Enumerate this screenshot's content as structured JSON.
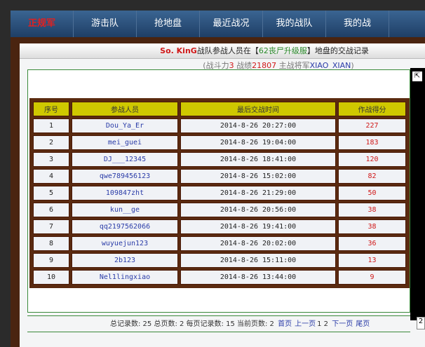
{
  "nav": [
    "正规军",
    "游击队",
    "抢地盘",
    "最近战况",
    "我的战队",
    "我的战"
  ],
  "title": {
    "team": "So. KinG",
    "mid1": "战队参战人员在【",
    "zone": "62丧尸升级服",
    "mid2": "】地盘的交战记录"
  },
  "sub": {
    "p1": "(战斗力",
    "power": "3",
    "p2": " 战绩",
    "record": "21807",
    "p3": " 主战将军",
    "general": "XIAO_XIAN",
    "p4": ")"
  },
  "table": {
    "headers": [
      "序号",
      "参战人员",
      "最后交战时间",
      "作战得分"
    ],
    "rows": [
      [
        "1",
        "Dou_Ya_Er",
        "2014-8-26 20:27:00",
        "227"
      ],
      [
        "2",
        "mei_guei",
        "2014-8-26 19:04:00",
        "183"
      ],
      [
        "3",
        "DJ___12345",
        "2014-8-26 18:41:00",
        "120"
      ],
      [
        "4",
        "qwe789456123",
        "2014-8-26 15:02:00",
        "82"
      ],
      [
        "5",
        "109847zht",
        "2014-8-26 21:29:00",
        "50"
      ],
      [
        "6",
        "kun__ge",
        "2014-8-26 20:56:00",
        "38"
      ],
      [
        "7",
        "qq2197562066",
        "2014-8-26 19:41:00",
        "38"
      ],
      [
        "8",
        "wuyuejun123",
        "2014-8-26 20:02:00",
        "36"
      ],
      [
        "9",
        "2b123",
        "2014-8-26 15:11:00",
        "13"
      ],
      [
        "10",
        "Nel1lingxiao",
        "2014-8-26 13:44:00",
        "9"
      ]
    ]
  },
  "footer": {
    "info": "总记录数: 25 总页数: 2 每页记录数: 15 当前页数: 2",
    "first": "首页",
    "prev": "上一页",
    "p1": "1",
    "p2": "2",
    "next": "下一页",
    "last": "尾页",
    "page_input": "2"
  }
}
